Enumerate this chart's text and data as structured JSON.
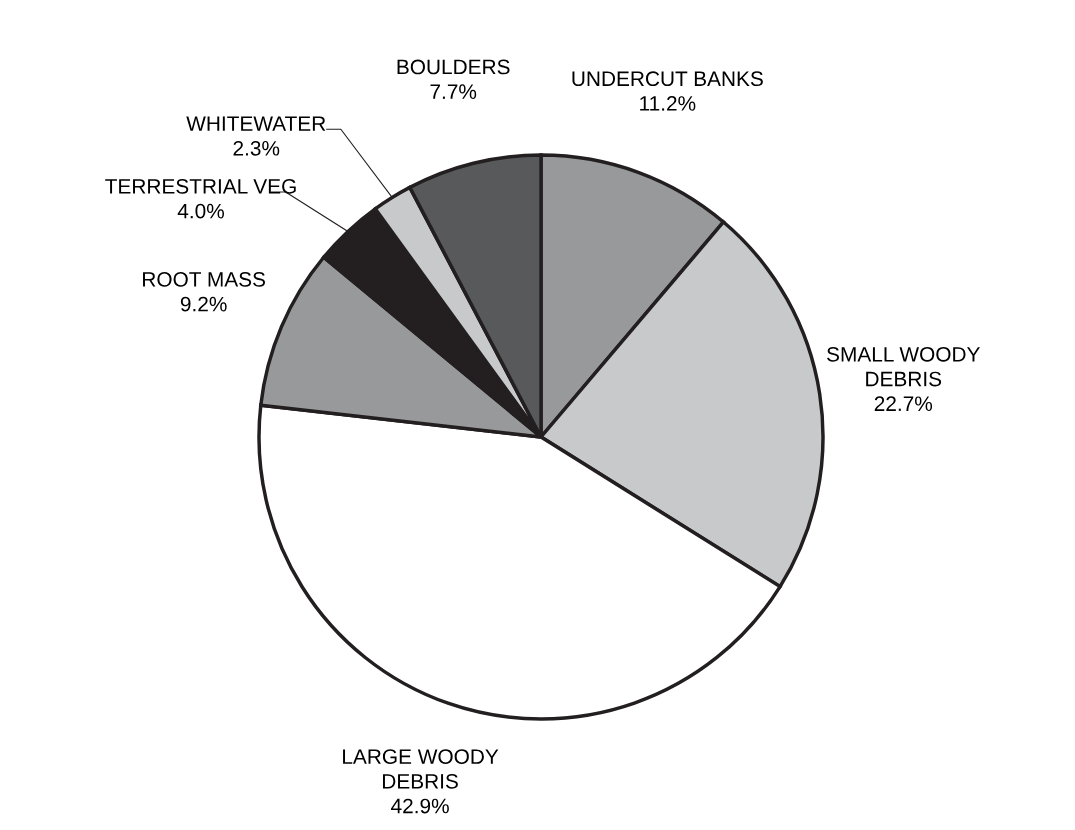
{
  "chart_data": {
    "type": "pie",
    "categories": [
      "UNDERCUT BANKS",
      "SMALL WOODY\nDEBRIS",
      "LARGE WOODY\nDEBRIS",
      "ROOT MASS",
      "TERRESTRIAL VEG",
      "WHITEWATER",
      "BOULDERS"
    ],
    "values": [
      11.2,
      22.7,
      42.9,
      9.2,
      4.0,
      2.3,
      7.7
    ],
    "value_labels": [
      "11.2%",
      "22.7%",
      "42.9%",
      "9.2%",
      "4.0%",
      "2.3%",
      "7.7%"
    ],
    "colors": [
      "#98999b",
      "#c8c9cb",
      "#ffffff",
      "#98999b",
      "#231f20",
      "#c8c9cb",
      "#58595b"
    ]
  }
}
